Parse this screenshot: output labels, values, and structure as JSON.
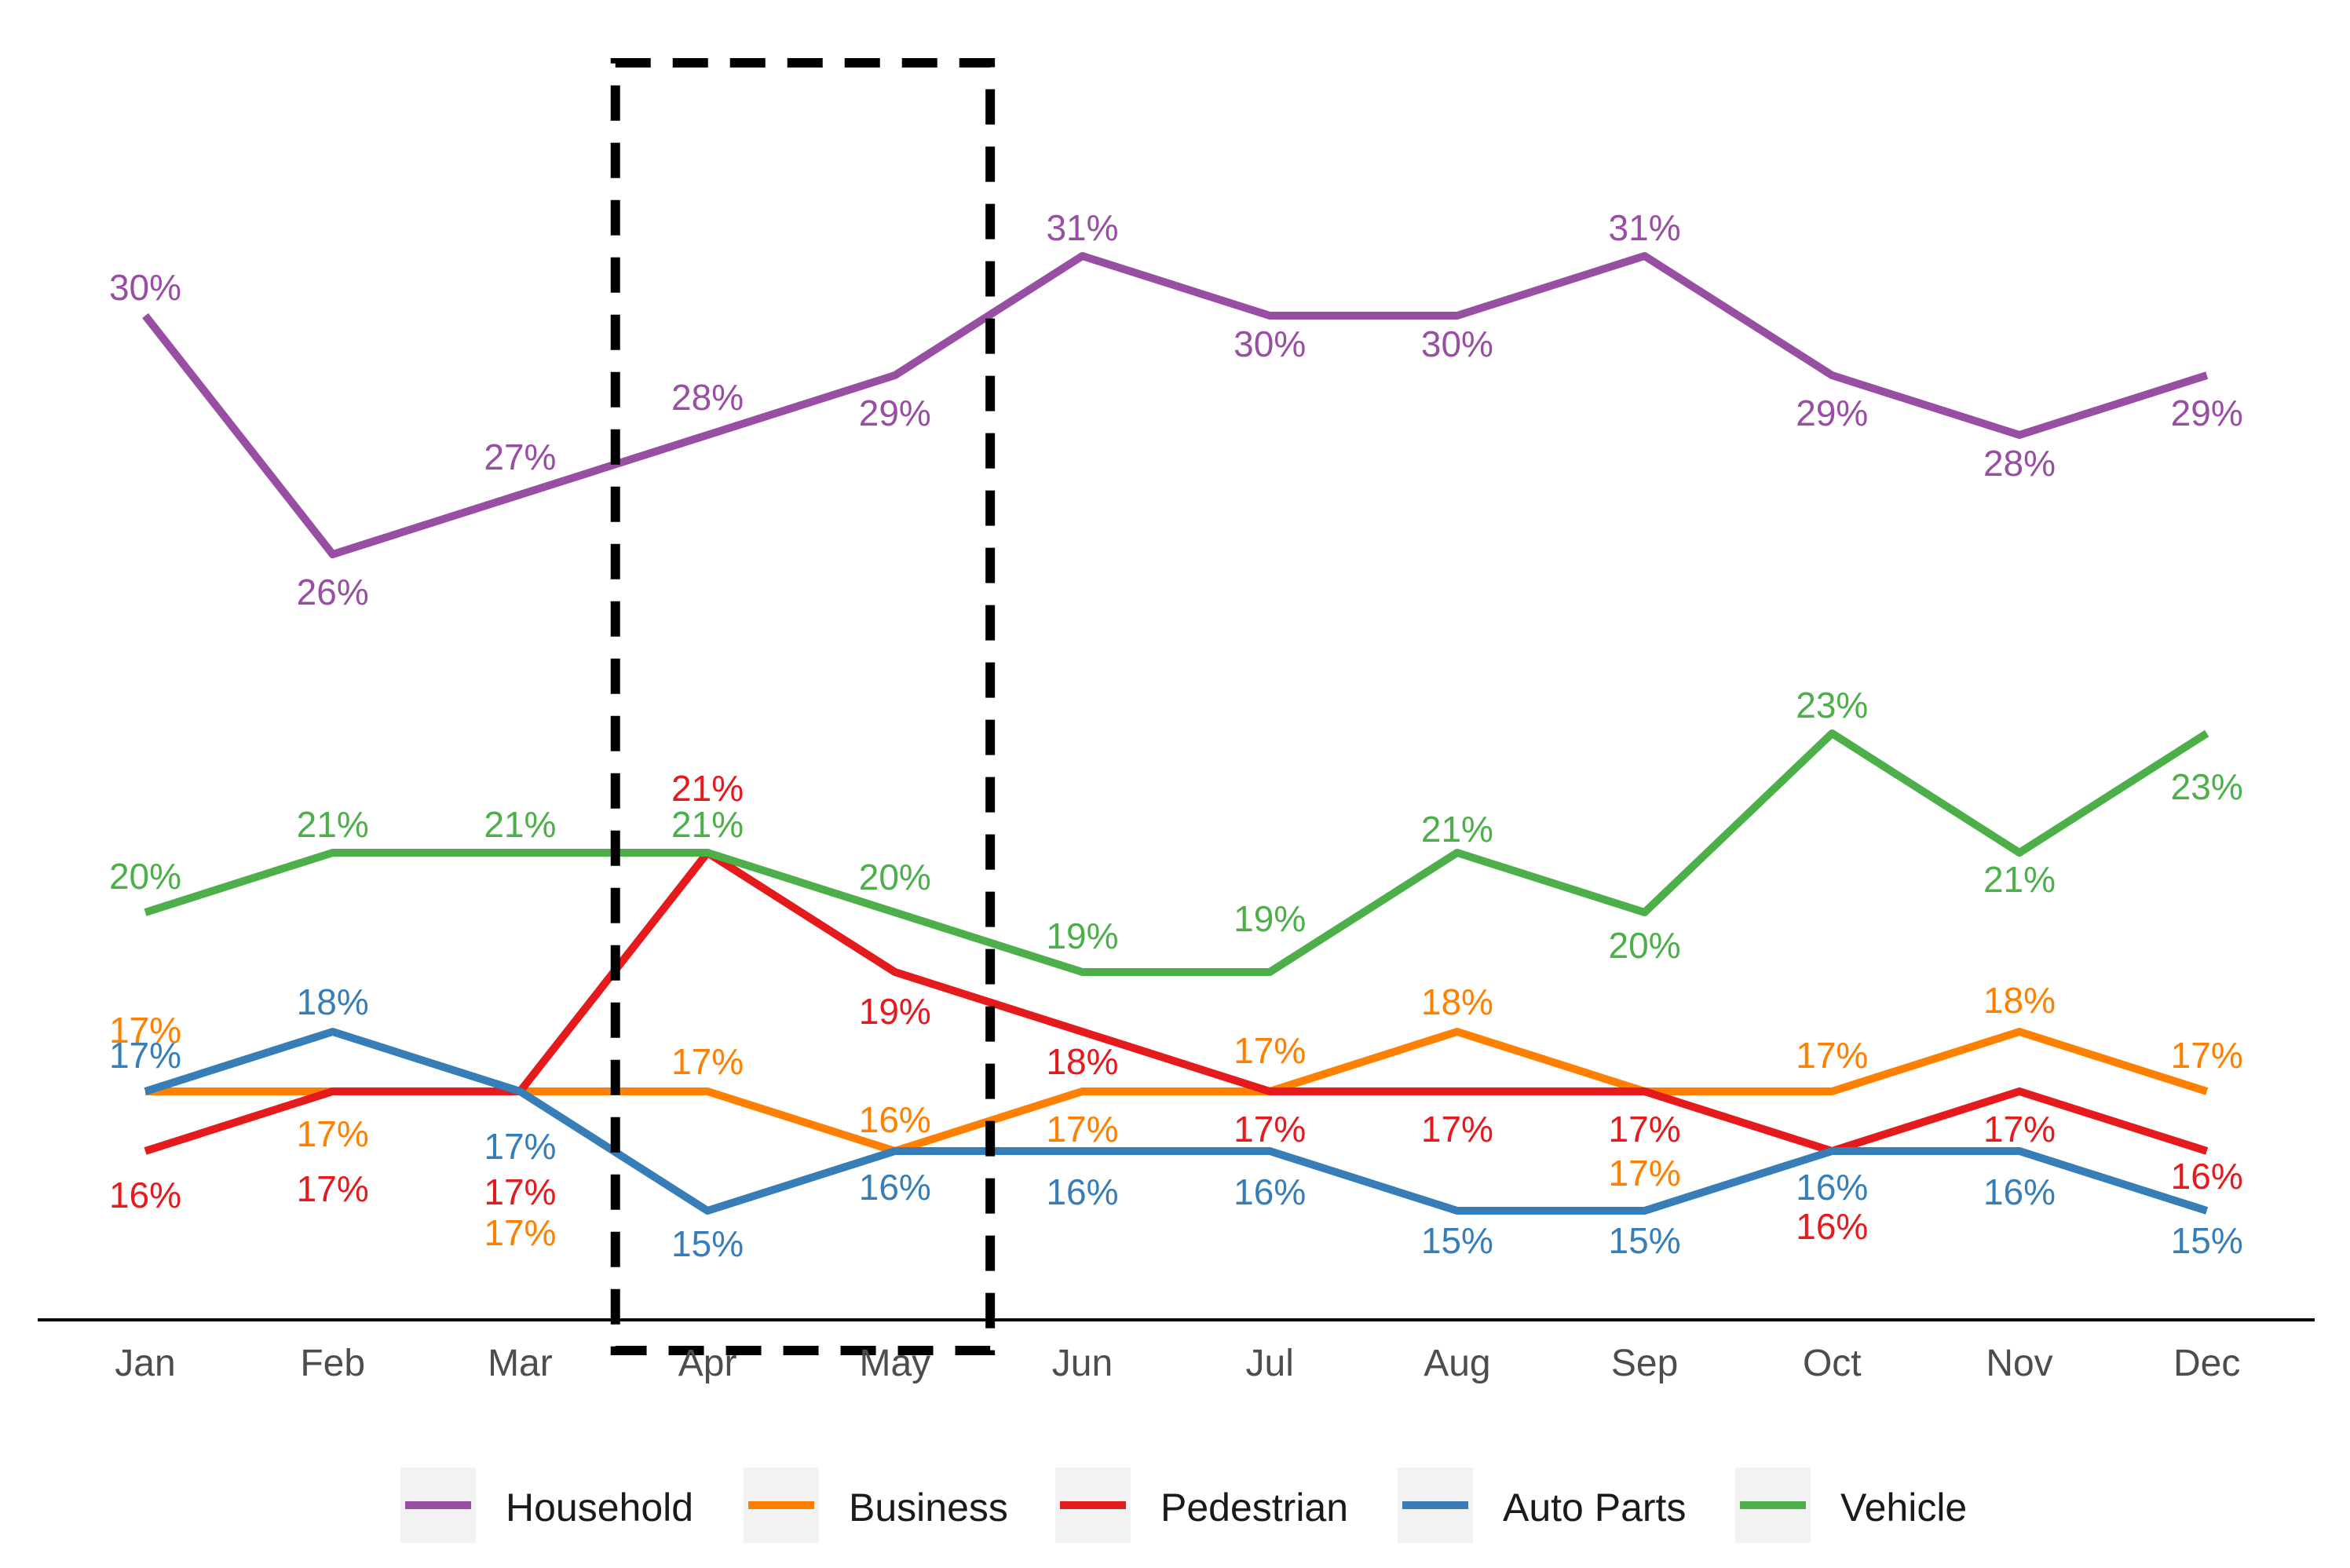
{
  "chart_data": {
    "type": "line",
    "title": "",
    "xlabel": "",
    "ylabel": "",
    "categories": [
      "Jan",
      "Feb",
      "Mar",
      "Apr",
      "May",
      "Jun",
      "Jul",
      "Aug",
      "Sep",
      "Oct",
      "Nov",
      "Dec"
    ],
    "ylim": [
      13,
      35
    ],
    "grid": false,
    "legend_position": "bottom",
    "highlight": {
      "from": "Apr",
      "to": "May",
      "style": "dashed-box"
    },
    "series": [
      {
        "name": "Household",
        "color": "#984EA3",
        "values": [
          30,
          26,
          27,
          28,
          29,
          31,
          30,
          30,
          31,
          29,
          28,
          29
        ],
        "labels": [
          "30%",
          "26%",
          "27%",
          "28%",
          "29%",
          "31%",
          "30%",
          "30%",
          "31%",
          "29%",
          "28%",
          "29%"
        ]
      },
      {
        "name": "Business",
        "color": "#FF7F00",
        "values": [
          17,
          17,
          17,
          17,
          16,
          17,
          17,
          18,
          17,
          17,
          18,
          17
        ],
        "labels": [
          "17%",
          "17%",
          "17%",
          "17%",
          "16%",
          "17%",
          "17%",
          "18%",
          "17%",
          "17%",
          "18%",
          "17%"
        ]
      },
      {
        "name": "Pedestrian",
        "color": "#E41A1C",
        "values": [
          16,
          17,
          17,
          21,
          19,
          18,
          17,
          17,
          17,
          16,
          17,
          16
        ],
        "labels": [
          "16%",
          "17%",
          "17%",
          "21%",
          "19%",
          "18%",
          "17%",
          "17%",
          "17%",
          "16%",
          "17%",
          "16%"
        ]
      },
      {
        "name": "Auto Parts",
        "color": "#377EB8",
        "values": [
          17,
          18,
          17,
          15,
          16,
          16,
          16,
          15,
          15,
          16,
          16,
          15
        ],
        "labels": [
          "17%",
          "18%",
          "17%",
          "15%",
          "16%",
          "16%",
          "16%",
          "15%",
          "15%",
          "16%",
          "16%",
          "15%"
        ]
      },
      {
        "name": "Vehicle",
        "color": "#4DAF4A",
        "values": [
          20,
          21,
          21,
          21,
          20,
          19,
          19,
          21,
          20,
          23,
          21,
          23
        ],
        "labels": [
          "20%",
          "21%",
          "21%",
          "21%",
          "20%",
          "19%",
          "19%",
          "21%",
          "20%",
          "23%",
          "21%",
          "23%"
        ]
      }
    ]
  }
}
